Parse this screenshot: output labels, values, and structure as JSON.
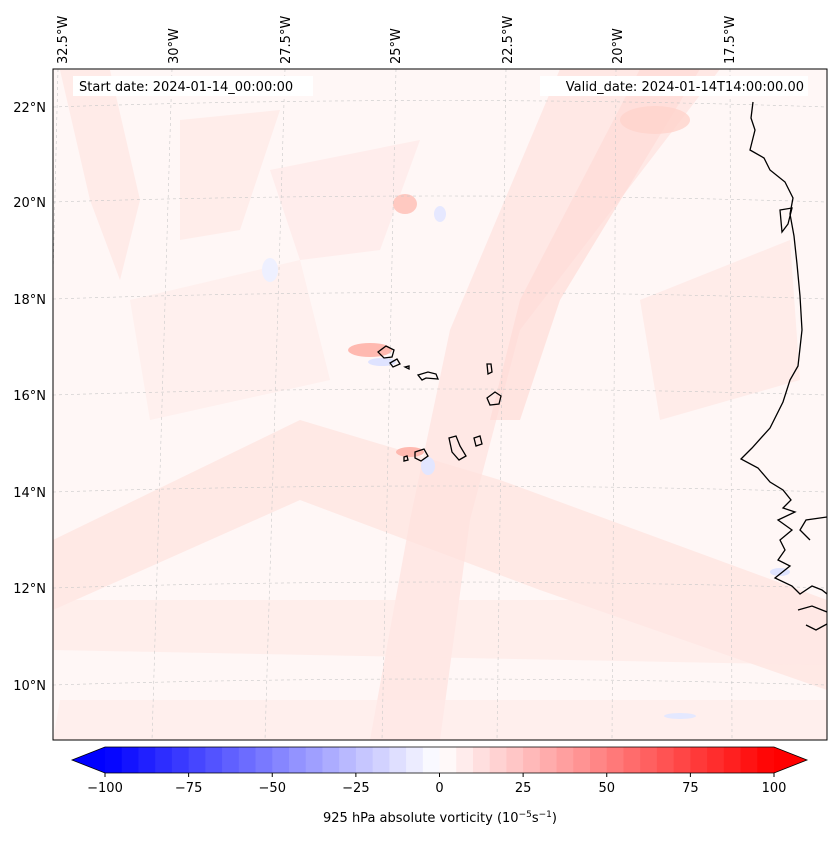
{
  "map": {
    "start_date_label": "Start date: 2024-01-14_00:00:00",
    "valid_date_label": "Valid_date: 2024-01-14T14:00:00.00",
    "longitude_labels": [
      "32.5°W",
      "30°W",
      "27.5°W",
      "25°W",
      "22.5°W",
      "20°W",
      "17.5°W"
    ],
    "latitude_labels": [
      "22°N",
      "20°N",
      "18°N",
      "16°N",
      "14°N",
      "12°N",
      "10°N"
    ],
    "field": "925 hPa absolute vorticity",
    "features": [
      "Cape Verde islands",
      "West African coastline"
    ]
  },
  "colorbar": {
    "label_text": "925 hPa absolute vorticity (10",
    "label_exp1": "−5",
    "label_mid": "s",
    "label_exp2": "−1",
    "label_close": ")",
    "tick_labels": [
      "−100",
      "−75",
      "−50",
      "−25",
      "0",
      "25",
      "50",
      "75",
      "100"
    ],
    "ticks": [
      -100,
      -75,
      -50,
      -25,
      0,
      25,
      50,
      75,
      100
    ],
    "range": [
      -100,
      100
    ],
    "levels": 41,
    "colormap": "bwr",
    "colors": {
      "min": "#0000ff",
      "mid": "#ffffff",
      "max": "#ff0000"
    }
  }
}
